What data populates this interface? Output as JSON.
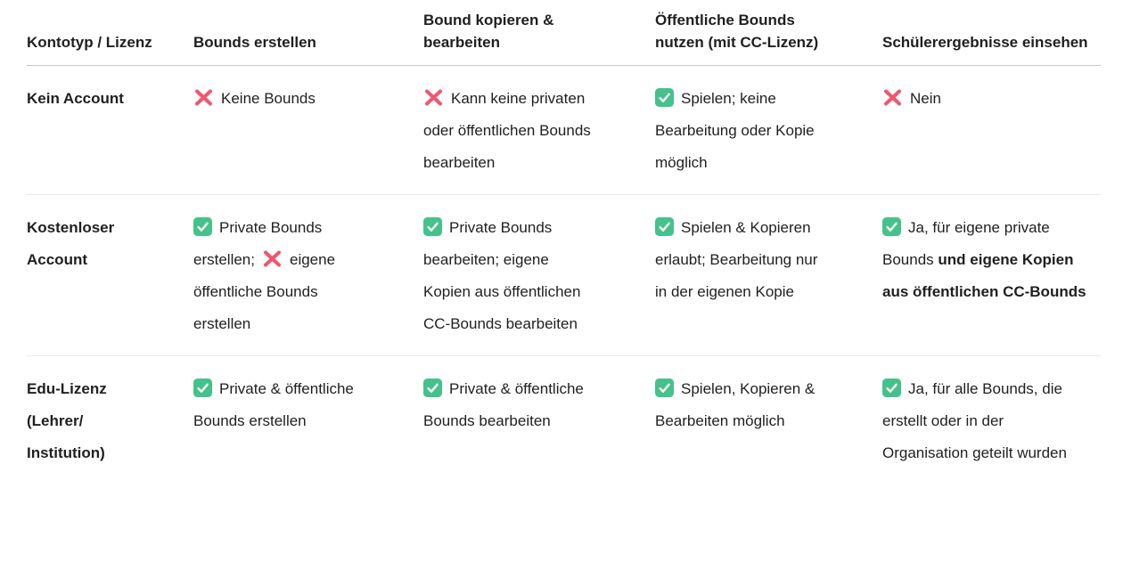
{
  "table": {
    "columns": [
      {
        "label": "Kontotyp / Lizenz"
      },
      {
        "label": "Bounds erstellen"
      },
      {
        "label": "Bound kopieren & bearbeiten"
      },
      {
        "label": "Öffentliche Bounds nutzen (mit CC-Lizenz)"
      },
      {
        "label": "Schülerergebnisse einsehen"
      }
    ],
    "rows": [
      {
        "label": "Kein Account",
        "cells": [
          [
            {
              "icon": "cross"
            },
            {
              "text": "Keine Bounds"
            }
          ],
          [
            {
              "icon": "cross"
            },
            {
              "text": "Kann keine privaten oder öffentlichen Bounds bearbeiten"
            }
          ],
          [
            {
              "icon": "check"
            },
            {
              "text": "Spielen; keine Bearbeitung oder Kopie möglich"
            }
          ],
          [
            {
              "icon": "cross"
            },
            {
              "text": "Nein"
            }
          ]
        ]
      },
      {
        "label": "Kostenloser Account",
        "cells": [
          [
            {
              "icon": "check"
            },
            {
              "text": "Private Bounds erstellen;"
            },
            {
              "icon": "cross"
            },
            {
              "text": "eigene öffentliche Bounds erstellen"
            }
          ],
          [
            {
              "icon": "check"
            },
            {
              "text": "Private Bounds bearbeiten; eigene Kopien aus öffentlichen CC-Bounds bearbeiten"
            }
          ],
          [
            {
              "icon": "check"
            },
            {
              "text": "Spielen & Kopieren erlaubt; Bearbeitung nur in der eigenen Kopie"
            }
          ],
          [
            {
              "icon": "check"
            },
            {
              "text": "Ja, für eigene private Bounds "
            },
            {
              "text": "und eigene Kopien aus öffentlichen CC-Bounds",
              "bold": true
            }
          ]
        ]
      },
      {
        "label": "Edu-Lizenz (Lehrer/ Institution)",
        "cells": [
          [
            {
              "icon": "check"
            },
            {
              "text": "Private & öffentliche Bounds erstellen"
            }
          ],
          [
            {
              "icon": "check"
            },
            {
              "text": "Private & öffentliche Bounds bearbeiten"
            }
          ],
          [
            {
              "icon": "check"
            },
            {
              "text": "Spielen, Kopieren & Bearbeiten möglich"
            }
          ],
          [
            {
              "icon": "check"
            },
            {
              "text": "Ja, für alle Bounds, die erstellt oder in der Organisation geteilt wurden"
            }
          ]
        ]
      }
    ]
  },
  "icons": {
    "check": "check-icon",
    "cross": "cross-icon"
  },
  "colors": {
    "check_green": "#45c28b",
    "cross_pink": "#f1566f",
    "text": "#1f1f1f",
    "row_divider": "#e8e8e8",
    "header_divider": "#c6c6c6",
    "background": "#ffffff"
  }
}
